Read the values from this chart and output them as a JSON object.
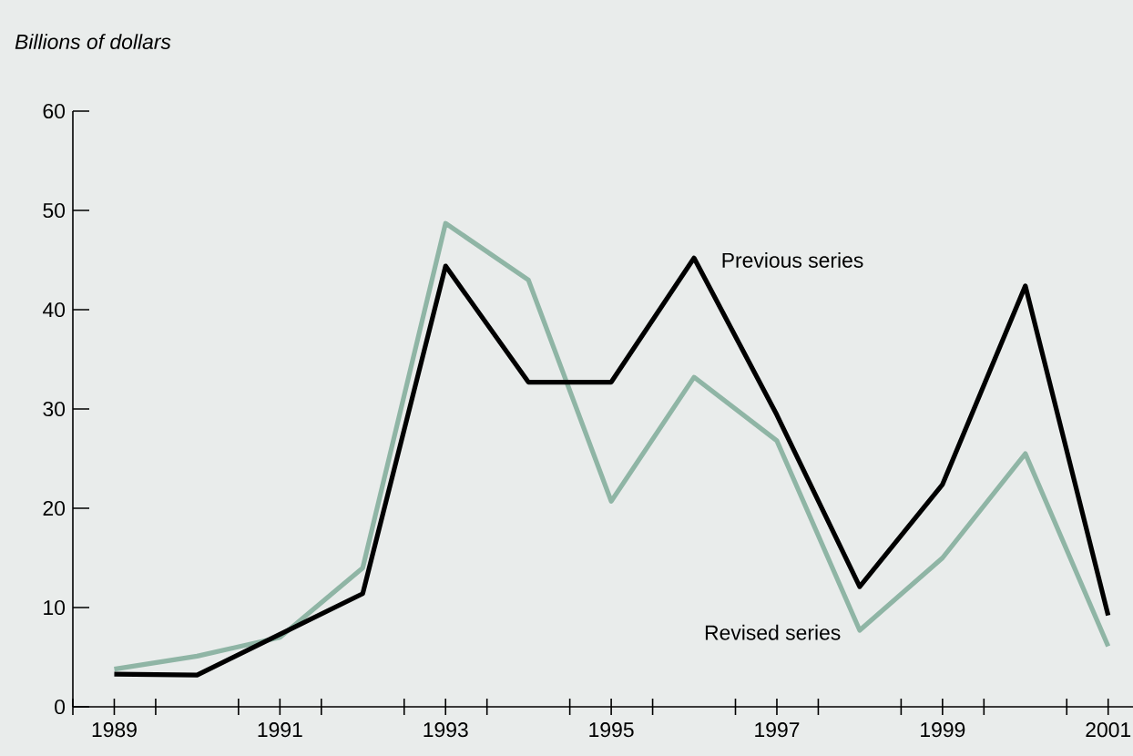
{
  "chart_data": {
    "type": "line",
    "ylabel": "Billions of dollars",
    "categories": [
      "1989",
      null,
      "1991",
      null,
      "1993",
      null,
      "1995",
      null,
      "1997",
      null,
      "1999",
      null,
      "2001"
    ],
    "series": [
      {
        "name": "Revised series",
        "color": "#8fb5a5",
        "values": [
          3.8,
          5.1,
          7.0,
          14.0,
          48.7,
          43.0,
          20.7,
          33.2,
          26.8,
          7.7,
          15.0,
          25.5,
          6.1
        ]
      },
      {
        "name": "Previous series",
        "color": "#000000",
        "values": [
          3.3,
          3.2,
          7.3,
          11.4,
          44.4,
          32.7,
          32.7,
          45.2,
          29.4,
          12.1,
          22.4,
          42.4,
          9.2
        ]
      }
    ],
    "ylim": [
      0,
      60
    ],
    "yticks": [
      0,
      10,
      20,
      30,
      40,
      50,
      60
    ],
    "grid": false,
    "legend": false
  }
}
